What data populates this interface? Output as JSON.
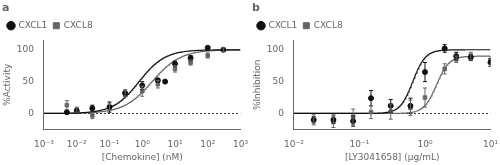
{
  "chart_data": [
    {
      "type": "scatter",
      "title": "a",
      "x_label": "[Chemokine] (nM)",
      "y_label": "%Activity",
      "log": "x",
      "xlim": [
        0.001,
        1000
      ],
      "ylim": [
        -25,
        115
      ],
      "xticks": [
        {
          "value": 0.001,
          "label": "10⁻³"
        },
        {
          "value": 0.01,
          "label": "10⁻²"
        },
        {
          "value": 0.1,
          "label": "10⁻¹"
        },
        {
          "value": 1,
          "label": "10⁰"
        },
        {
          "value": 10,
          "label": "10¹"
        },
        {
          "value": 100,
          "label": "10²"
        },
        {
          "value": 1000,
          "label": "10³"
        }
      ],
      "yticks": [
        0,
        50,
        100
      ],
      "grid": false,
      "legend": "upper left",
      "baseline": 0,
      "series": [
        {
          "name": "CXCL1",
          "color": "#111111",
          "marker": "circle",
          "x": [
            0.005,
            0.01,
            0.03,
            0.1,
            0.3,
            1.0,
            3.0,
            5.0,
            10.0,
            30.0,
            100.0,
            300.0
          ],
          "values": [
            2,
            4,
            8,
            10,
            32,
            44,
            52,
            50,
            78,
            87,
            103,
            100
          ],
          "yerr": [
            3,
            2,
            5,
            8,
            5,
            6,
            3,
            2,
            4,
            4,
            3,
            2
          ],
          "fit": {
            "bottom": 0,
            "top": 100,
            "ec50": 0.8,
            "hill": 1.1
          }
        },
        {
          "name": "CXCL8",
          "color": "#666666",
          "marker": "square",
          "x": [
            0.005,
            0.01,
            0.03,
            0.1,
            0.3,
            1.0,
            3.0,
            10.0,
            30.0,
            100.0,
            300.0
          ],
          "values": [
            13,
            6,
            -3,
            10,
            31,
            35,
            46,
            70,
            80,
            91,
            100
          ],
          "yerr": [
            7,
            4,
            5,
            5,
            5,
            8,
            6,
            5,
            4,
            4,
            3
          ],
          "fit": {
            "bottom": 0,
            "top": 100,
            "ec50": 2.0,
            "hill": 1.0
          }
        }
      ]
    },
    {
      "type": "scatter",
      "title": "b",
      "x_label": "[LY3041658] (μg/mL)",
      "y_label": "%Inhibition",
      "log": "x",
      "xlim": [
        0.01,
        10
      ],
      "ylim": [
        -25,
        115
      ],
      "xticks": [
        {
          "value": 0.01,
          "label": "10⁻²"
        },
        {
          "value": 0.1,
          "label": "10⁻¹"
        },
        {
          "value": 1,
          "label": "10⁰"
        },
        {
          "value": 10,
          "label": "10¹"
        }
      ],
      "yticks": [
        0,
        50,
        100
      ],
      "grid": false,
      "legend": "upper left",
      "baseline": 0,
      "series": [
        {
          "name": "CXCL1",
          "color": "#111111",
          "marker": "circle",
          "x": [
            0.02,
            0.04,
            0.08,
            0.15,
            0.3,
            0.6,
            1.0,
            2.0,
            3.0,
            5.0,
            10.0
          ],
          "values": [
            -10,
            -10,
            -12,
            24,
            12,
            12,
            65,
            102,
            90,
            88,
            80
          ],
          "yerr": [
            5,
            6,
            8,
            12,
            10,
            12,
            15,
            6,
            6,
            5,
            6
          ],
          "fit": {
            "bottom": 0,
            "top": 100,
            "ec50": 0.65,
            "hill": 4.5
          }
        },
        {
          "name": "CXCL8",
          "color": "#666666",
          "marker": "square",
          "x": [
            0.02,
            0.04,
            0.08,
            0.15,
            0.3,
            0.6,
            1.0,
            2.0,
            3.0,
            5.0,
            10.0
          ],
          "values": [
            -10,
            -12,
            -5,
            2,
            3,
            9,
            25,
            70,
            85,
            90,
            83
          ],
          "yerr": [
            8,
            10,
            12,
            10,
            12,
            12,
            15,
            8,
            5,
            6,
            6
          ],
          "fit": {
            "bottom": 0,
            "top": 90,
            "ec50": 1.5,
            "hill": 4.5
          }
        }
      ]
    }
  ]
}
